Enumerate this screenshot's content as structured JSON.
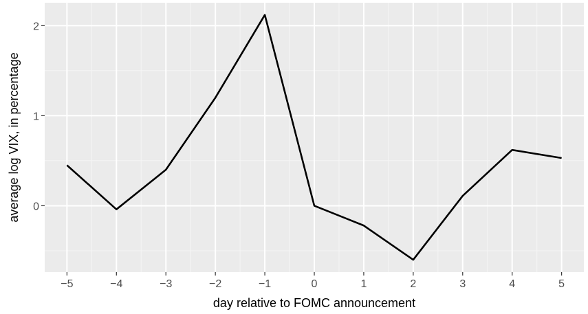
{
  "chart_data": {
    "type": "line",
    "title": "",
    "xlabel": "day relative to FOMC announcement",
    "ylabel": "average log VIX, in percentage",
    "x": [
      -5,
      -4,
      -3,
      -2,
      -1,
      0,
      1,
      2,
      3,
      4,
      5
    ],
    "series": [
      {
        "values": [
          0.45,
          -0.04,
          0.4,
          1.2,
          2.12,
          0.0,
          -0.22,
          -0.6,
          0.11,
          0.62,
          0.53
        ]
      }
    ],
    "xlim": [
      -5.45,
      5.45
    ],
    "ylim": [
      -0.737,
      2.255
    ],
    "x_ticks": [
      -5,
      -4,
      -3,
      -2,
      -1,
      0,
      1,
      2,
      3,
      4,
      5
    ],
    "x_tick_labels": [
      "−5",
      "−4",
      "−3",
      "−2",
      "−1",
      "0",
      "1",
      "2",
      "3",
      "4",
      "5"
    ],
    "y_ticks": [
      0,
      1,
      2
    ],
    "y_tick_labels": [
      "0",
      "1",
      "2"
    ],
    "grid": true,
    "legend": "none",
    "colors": {
      "panel_background": "#ebebeb",
      "grid_major": "#ffffff",
      "grid_minor": "#f5f5f5",
      "line": "#000000",
      "tick_label": "#4d4d4d",
      "tick_mark": "#333333"
    }
  }
}
